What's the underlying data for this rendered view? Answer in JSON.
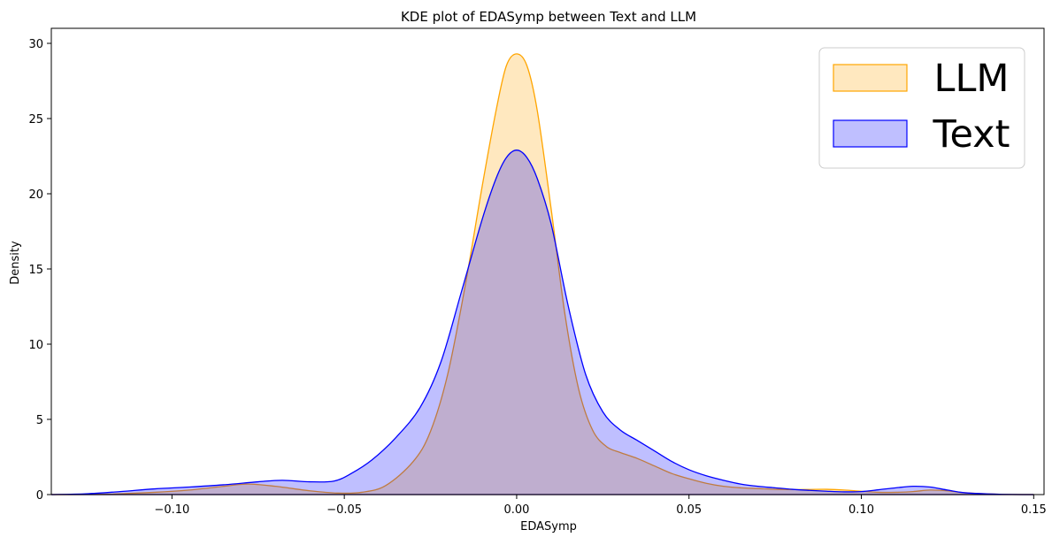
{
  "chart_data": {
    "type": "area",
    "title": "KDE plot of EDASymp between Text and LLM",
    "xlabel": "EDASymp",
    "ylabel": "Density",
    "xlim": [
      -0.135,
      0.153
    ],
    "ylim": [
      0,
      31
    ],
    "x_ticks": [
      -0.1,
      -0.05,
      0.0,
      0.05,
      0.1,
      0.15
    ],
    "x_tick_labels": [
      "−0.10",
      "−0.05",
      "0.00",
      "0.05",
      "0.10",
      "0.15"
    ],
    "y_ticks": [
      0,
      5,
      10,
      15,
      20,
      25,
      30
    ],
    "y_tick_labels": [
      "0",
      "5",
      "10",
      "15",
      "20",
      "25",
      "30"
    ],
    "grid": false,
    "legend_position": "top-right",
    "series": [
      {
        "name": "LLM",
        "color": "#FFA500",
        "fill_color": "#FFA500",
        "fill_opacity": 0.25,
        "x": [
          -0.135,
          -0.12,
          -0.105,
          -0.095,
          -0.085,
          -0.078,
          -0.07,
          -0.06,
          -0.052,
          -0.045,
          -0.038,
          -0.03,
          -0.025,
          -0.02,
          -0.015,
          -0.01,
          -0.006,
          -0.003,
          0.0,
          0.003,
          0.006,
          0.01,
          0.014,
          0.018,
          0.022,
          0.026,
          0.03,
          0.035,
          0.04,
          0.045,
          0.05,
          0.055,
          0.06,
          0.065,
          0.07,
          0.075,
          0.08,
          0.085,
          0.09,
          0.095,
          0.1,
          0.105,
          0.11,
          0.115,
          0.12,
          0.125,
          0.13,
          0.14,
          0.15
        ],
        "y": [
          0.0,
          0.02,
          0.15,
          0.3,
          0.55,
          0.7,
          0.55,
          0.25,
          0.1,
          0.15,
          0.6,
          2.2,
          4.2,
          8.0,
          13.8,
          20.5,
          25.5,
          28.5,
          29.3,
          28.5,
          25.5,
          19.0,
          12.0,
          7.0,
          4.3,
          3.2,
          2.8,
          2.4,
          1.9,
          1.4,
          1.05,
          0.75,
          0.55,
          0.45,
          0.4,
          0.35,
          0.33,
          0.34,
          0.35,
          0.3,
          0.22,
          0.15,
          0.15,
          0.2,
          0.3,
          0.25,
          0.12,
          0.02,
          0.0
        ]
      },
      {
        "name": "Text",
        "color": "#0000FF",
        "fill_color": "#0000FF",
        "fill_opacity": 0.25,
        "x": [
          -0.135,
          -0.125,
          -0.115,
          -0.105,
          -0.095,
          -0.085,
          -0.075,
          -0.068,
          -0.06,
          -0.053,
          -0.048,
          -0.042,
          -0.035,
          -0.028,
          -0.022,
          -0.016,
          -0.01,
          -0.006,
          -0.003,
          0.0,
          0.003,
          0.006,
          0.01,
          0.015,
          0.02,
          0.025,
          0.03,
          0.035,
          0.04,
          0.045,
          0.05,
          0.055,
          0.06,
          0.065,
          0.07,
          0.075,
          0.08,
          0.085,
          0.09,
          0.095,
          0.1,
          0.105,
          0.11,
          0.115,
          0.12,
          0.125,
          0.13,
          0.14,
          0.15
        ],
        "y": [
          0.0,
          0.05,
          0.2,
          0.38,
          0.5,
          0.65,
          0.85,
          0.95,
          0.85,
          0.9,
          1.4,
          2.3,
          3.8,
          5.8,
          8.8,
          13.5,
          18.3,
          21.0,
          22.4,
          22.9,
          22.4,
          21.0,
          18.0,
          12.5,
          8.0,
          5.5,
          4.3,
          3.6,
          2.9,
          2.2,
          1.65,
          1.25,
          0.95,
          0.7,
          0.55,
          0.45,
          0.35,
          0.28,
          0.22,
          0.18,
          0.2,
          0.32,
          0.45,
          0.55,
          0.5,
          0.3,
          0.12,
          0.02,
          0.0
        ]
      }
    ]
  }
}
